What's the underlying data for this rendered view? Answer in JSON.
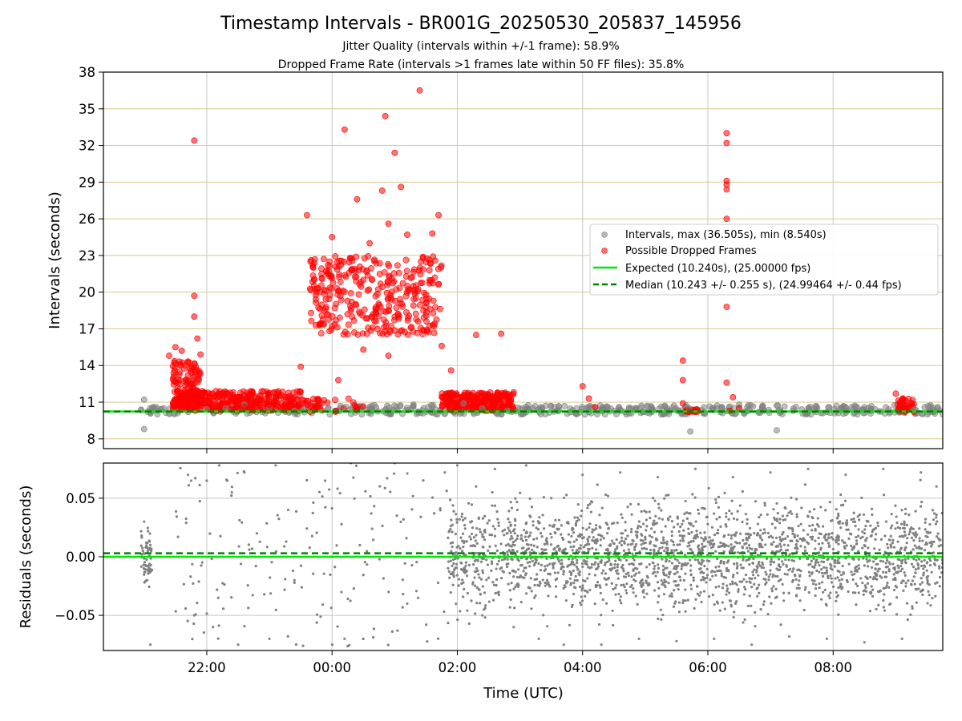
{
  "chart_data": [
    {
      "type": "scatter",
      "title": "Timestamp Intervals - BR001G_20250530_205837_145956",
      "subtitle_1": "Jitter Quality (intervals within +/-1 frame): 58.9%",
      "subtitle_2": "Dropped Frame Rate (intervals >1 frames late within 50 FF files): 35.8%",
      "ylabel": "Intervals (seconds)",
      "xlabel": "",
      "xlim_hours": [
        20.35,
        33.75
      ],
      "ylim": [
        7.2,
        38
      ],
      "x_ticks_hours": [
        22,
        24,
        26,
        28,
        30,
        32
      ],
      "x_tick_labels": [
        "22:00",
        "00:00",
        "02:00",
        "04:00",
        "06:00",
        "08:00"
      ],
      "y_ticks": [
        8,
        11,
        14,
        17,
        20,
        23,
        26,
        29,
        32,
        35,
        38
      ],
      "y_tick_labels": [
        "8",
        "11",
        "14",
        "17",
        "20",
        "23",
        "26",
        "29",
        "32",
        "35",
        "38"
      ],
      "grid": true,
      "legend_position": "center-right",
      "lines": [
        {
          "name": "Expected (10.240s), (25.00000 fps)",
          "y": 10.24,
          "color": "#00e600",
          "style": "solid"
        },
        {
          "name": "Median (10.243 +/- 0.255 s), (24.99464 +/- 0.44 fps)",
          "y": 10.243,
          "color": "#008000",
          "style": "dashed"
        }
      ],
      "series": [
        {
          "name": "Intervals, max (36.505s), min (8.540s)",
          "color": "#808080",
          "points": [
            [
              21.0,
              11.2
            ],
            [
              21.0,
              8.8
            ],
            [
              21.1,
              10.1
            ],
            [
              21.15,
              10.6
            ],
            [
              21.2,
              10.3
            ],
            [
              22.0,
              10.4
            ],
            [
              22.3,
              10.5
            ],
            [
              22.6,
              10.8
            ],
            [
              23.0,
              10.5
            ],
            [
              23.4,
              10.3
            ],
            [
              25.3,
              10.8
            ],
            [
              25.6,
              10.6
            ],
            [
              26.1,
              10.9
            ],
            [
              26.4,
              10.5
            ],
            [
              26.8,
              10.3
            ],
            [
              27.2,
              10.5
            ],
            [
              27.6,
              10.3
            ],
            [
              28.1,
              10.2
            ],
            [
              28.4,
              10.6
            ],
            [
              28.7,
              10.0
            ],
            [
              29.1,
              10.4
            ],
            [
              29.4,
              10.3
            ],
            [
              29.7,
              10.5
            ],
            [
              29.72,
              8.6
            ],
            [
              30.2,
              10.2
            ],
            [
              30.5,
              10.8
            ],
            [
              30.9,
              10.3
            ],
            [
              31.1,
              8.7
            ],
            [
              31.5,
              10.4
            ],
            [
              31.9,
              10.2
            ],
            [
              32.3,
              10.6
            ],
            [
              32.6,
              10.3
            ],
            [
              32.9,
              10.1
            ],
            [
              33.3,
              10.4
            ],
            [
              33.6,
              10.2
            ]
          ]
        },
        {
          "name": "Possible Dropped Frames",
          "color": "#ff0000",
          "points": [
            [
              21.8,
              32.4
            ],
            [
              21.8,
              19.7
            ],
            [
              21.8,
              18.0
            ],
            [
              21.85,
              16.2
            ],
            [
              21.5,
              15.5
            ],
            [
              21.6,
              15.2
            ],
            [
              21.4,
              14.8
            ],
            [
              21.9,
              14.9
            ],
            [
              21.7,
              13.2
            ],
            [
              21.55,
              12.8
            ],
            [
              23.6,
              26.3
            ],
            [
              23.9,
              19.4
            ],
            [
              23.7,
              22.0
            ],
            [
              24.0,
              24.5
            ],
            [
              24.2,
              33.3
            ],
            [
              24.4,
              27.6
            ],
            [
              24.5,
              21.0
            ],
            [
              24.6,
              24.0
            ],
            [
              24.8,
              28.3
            ],
            [
              24.85,
              34.4
            ],
            [
              24.9,
              25.6
            ],
            [
              25.0,
              31.4
            ],
            [
              25.1,
              28.6
            ],
            [
              25.2,
              24.7
            ],
            [
              25.4,
              36.5
            ],
            [
              25.45,
              22.8
            ],
            [
              25.5,
              19.8
            ],
            [
              25.6,
              24.8
            ],
            [
              25.7,
              26.3
            ],
            [
              25.75,
              15.6
            ],
            [
              25.9,
              13.6
            ],
            [
              24.1,
              20.1
            ],
            [
              24.3,
              18.5
            ],
            [
              24.7,
              17.6
            ],
            [
              25.3,
              18.9
            ],
            [
              23.8,
              17.3
            ],
            [
              24.5,
              15.3
            ],
            [
              24.9,
              14.8
            ],
            [
              23.5,
              13.9
            ],
            [
              23.3,
              11.4
            ],
            [
              24.1,
              12.8
            ],
            [
              26.3,
              16.5
            ],
            [
              26.7,
              16.6
            ],
            [
              26.5,
              11.6
            ],
            [
              26.9,
              11.8
            ],
            [
              26.2,
              10.8
            ],
            [
              22.2,
              11.0
            ],
            [
              22.6,
              10.6
            ],
            [
              23.0,
              10.8
            ],
            [
              28.0,
              12.3
            ],
            [
              28.1,
              11.3
            ],
            [
              28.2,
              10.6
            ],
            [
              29.6,
              14.4
            ],
            [
              29.6,
              12.8
            ],
            [
              29.6,
              10.9
            ],
            [
              29.7,
              10.2
            ],
            [
              29.8,
              10.3
            ],
            [
              30.3,
              33.0
            ],
            [
              30.3,
              32.2
            ],
            [
              30.3,
              29.1
            ],
            [
              30.3,
              28.8
            ],
            [
              30.3,
              28.4
            ],
            [
              30.3,
              26.0
            ],
            [
              30.3,
              18.8
            ],
            [
              30.3,
              12.6
            ],
            [
              30.4,
              11.4
            ],
            [
              30.35,
              10.3
            ],
            [
              30.5,
              10.5
            ],
            [
              33.0,
              11.7
            ],
            [
              33.1,
              11.2
            ],
            [
              33.2,
              10.7
            ],
            [
              33.15,
              10.3
            ]
          ]
        }
      ]
    },
    {
      "type": "scatter",
      "ylabel": "Residuals (seconds)",
      "xlabel": "Time (UTC)",
      "xlim_hours": [
        20.35,
        33.75
      ],
      "ylim": [
        -0.08,
        0.08
      ],
      "y_ticks": [
        0.05,
        0.0,
        -0.05
      ],
      "y_tick_labels": [
        "0.05",
        "0.00",
        "−0.05"
      ],
      "x_ticks_hours": [
        22,
        24,
        26,
        28,
        30,
        32
      ],
      "x_tick_labels": [
        "22:00",
        "00:00",
        "02:00",
        "04:00",
        "06:00",
        "08:00"
      ],
      "grid": true,
      "lines": [
        {
          "name": "Expected",
          "y": 0.0,
          "color": "#00e600",
          "style": "solid"
        },
        {
          "name": "Median",
          "y": 0.003,
          "color": "#008000",
          "style": "dashed"
        }
      ],
      "series": [
        {
          "name": "",
          "color": "#808080",
          "points": [
            [
              21.0,
              0.03
            ],
            [
              21.05,
              -0.02
            ],
            [
              21.1,
              0.01
            ],
            [
              21.1,
              -0.075
            ],
            [
              21.7,
              0.07
            ],
            [
              21.75,
              0.065
            ],
            [
              21.8,
              -0.05
            ],
            [
              22.0,
              0.065
            ],
            [
              22.1,
              -0.06
            ],
            [
              22.2,
              0.078
            ],
            [
              22.4,
              0.055
            ],
            [
              22.6,
              0.072
            ],
            [
              22.5,
              -0.075
            ],
            [
              22.8,
              0.02
            ],
            [
              23.0,
              -0.07
            ],
            [
              23.1,
              0.078
            ],
            [
              23.3,
              0.04
            ],
            [
              23.4,
              -0.02
            ],
            [
              24.0,
              0.0
            ],
            [
              24.2,
              -0.07
            ],
            [
              24.3,
              0.08
            ],
            [
              25.0,
              0.08
            ],
            [
              25.2,
              -0.04
            ],
            [
              25.8,
              0.072
            ],
            [
              26.0,
              0.078
            ],
            [
              26.3,
              0.06
            ],
            [
              26.4,
              -0.05
            ],
            [
              26.6,
              0.075
            ],
            [
              26.8,
              0.02
            ],
            [
              26.9,
              -0.06
            ],
            [
              27.1,
              0.078
            ],
            [
              27.3,
              -0.07
            ],
            [
              27.5,
              0.05
            ],
            [
              27.7,
              -0.075
            ],
            [
              28.0,
              0.07
            ],
            [
              28.3,
              -0.075
            ],
            [
              28.6,
              0.072
            ],
            [
              28.9,
              -0.07
            ],
            [
              29.2,
              0.068
            ],
            [
              29.5,
              -0.072
            ],
            [
              29.8,
              0.075
            ],
            [
              30.1,
              -0.07
            ],
            [
              30.4,
              0.068
            ],
            [
              30.7,
              -0.075
            ],
            [
              31.0,
              0.072
            ],
            [
              31.3,
              -0.068
            ],
            [
              31.6,
              0.075
            ],
            [
              31.9,
              -0.07
            ],
            [
              32.2,
              0.07
            ],
            [
              32.5,
              -0.073
            ],
            [
              32.8,
              0.075
            ],
            [
              33.1,
              -0.07
            ],
            [
              33.4,
              0.072
            ],
            [
              33.65,
              0.06
            ]
          ]
        }
      ]
    }
  ]
}
